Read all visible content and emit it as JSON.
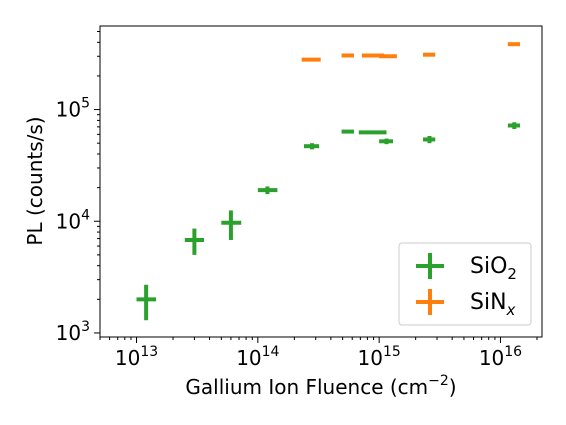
{
  "chart_data": {
    "type": "scatter",
    "xscale": "log",
    "yscale": "log",
    "xlim": [
      5000000000000.0,
      2.2e+16
    ],
    "ylim": [
      920,
      560000.0
    ],
    "xlabel": {
      "main": "Gallium Ion Fluence (cm",
      "sup": "−2",
      "close": ")"
    },
    "ylabel": "PL (counts/s)",
    "xticks": [
      {
        "value": 10000000000000.0,
        "base": "10",
        "exp": "13"
      },
      {
        "value": 100000000000000.0,
        "base": "10",
        "exp": "14"
      },
      {
        "value": 1000000000000000.0,
        "base": "10",
        "exp": "15"
      },
      {
        "value": 1e+16,
        "base": "10",
        "exp": "16"
      }
    ],
    "yticks": [
      {
        "value": 1000,
        "base": "10",
        "exp": "3"
      },
      {
        "value": 10000,
        "base": "10",
        "exp": "4"
      },
      {
        "value": 100000,
        "base": "10",
        "exp": "5"
      }
    ],
    "legend_position": "lower right",
    "grid": false,
    "series": [
      {
        "name": {
          "base": "SiO",
          "sub": "2",
          "italic": false
        },
        "color": "#2ca02c",
        "points": [
          {
            "x": 12000000000000.0,
            "xerr": [
              10000000000000.0,
              14500000000000.0
            ],
            "y": 2000,
            "yerr": [
              1300,
              2700
            ]
          },
          {
            "x": 30000000000000.0,
            "xerr": [
              25000000000000.0,
              36000000000000.0
            ],
            "y": 6800,
            "yerr": [
              5000,
              8600
            ]
          },
          {
            "x": 60000000000000.0,
            "xerr": [
              50000000000000.0,
              73000000000000.0
            ],
            "y": 9700,
            "yerr": [
              6800,
              12500
            ]
          },
          {
            "x": 120000000000000.0,
            "xerr": [
              100000000000000.0,
              145000000000000.0
            ],
            "y": 19000,
            "yerr": [
              17500,
              20500
            ]
          },
          {
            "x": 280000000000000.0,
            "xerr": [
              240000000000000.0,
              320000000000000.0
            ],
            "y": 47000,
            "yerr": [
              44000,
              50000
            ]
          },
          {
            "x": 550000000000000.0,
            "xerr": [
              490000000000000.0,
              620000000000000.0
            ],
            "y": 63500,
            "yerr": [
              63000,
              64000
            ]
          },
          {
            "x": 900000000000000.0,
            "xerr": [
              680000000000000.0,
              1150000000000000.0
            ],
            "y": 62500,
            "yerr": [
              62000,
              63000
            ]
          },
          {
            "x": 1150000000000000.0,
            "xerr": [
              1000000000000000.0,
              1300000000000000.0
            ],
            "y": 52000,
            "yerr": [
              49000,
              55000
            ]
          },
          {
            "x": 2600000000000000.0,
            "xerr": [
              2300000000000000.0,
              2900000000000000.0
            ],
            "y": 54000,
            "yerr": [
              50000,
              58000
            ]
          },
          {
            "x": 1.3e+16,
            "xerr": [
              1.15e+16,
              1.45e+16
            ],
            "y": 72000,
            "yerr": [
              67000,
              77000
            ]
          }
        ]
      },
      {
        "name": {
          "base": "SiN",
          "sub": "x",
          "italic": true
        },
        "color": "#ff7f0e",
        "points": [
          {
            "x": 280000000000000.0,
            "xerr": [
              230000000000000.0,
              330000000000000.0
            ],
            "y": 280000,
            "yerr": [
              272000,
              288000
            ]
          },
          {
            "x": 550000000000000.0,
            "xerr": [
              490000000000000.0,
              620000000000000.0
            ],
            "y": 305000,
            "yerr": [
              298000,
              312000
            ]
          },
          {
            "x": 900000000000000.0,
            "xerr": [
              720000000000000.0,
              1100000000000000.0
            ],
            "y": 305000,
            "yerr": [
              298000,
              312000
            ]
          },
          {
            "x": 1200000000000000.0,
            "xerr": [
              1000000000000000.0,
              1400000000000000.0
            ],
            "y": 300000,
            "yerr": [
              292000,
              308000
            ]
          },
          {
            "x": 2600000000000000.0,
            "xerr": [
              2300000000000000.0,
              2900000000000000.0
            ],
            "y": 310000,
            "yerr": [
              303000,
              317000
            ]
          },
          {
            "x": 1.3e+16,
            "xerr": [
              1.15e+16,
              1.45e+16
            ],
            "y": 385000,
            "yerr": [
              377000,
              393000
            ]
          }
        ]
      }
    ]
  }
}
